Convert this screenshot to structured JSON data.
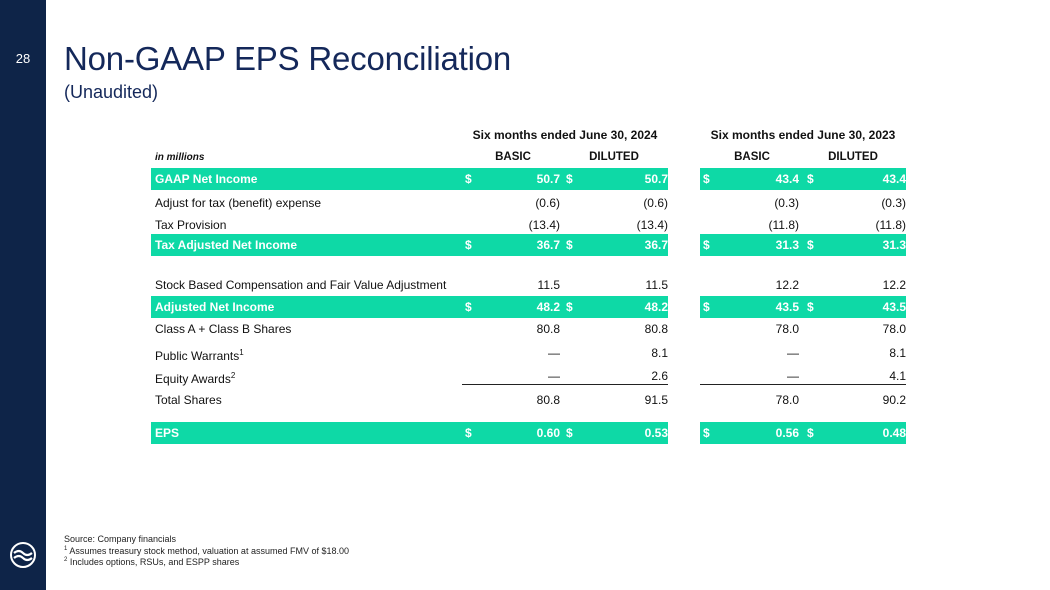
{
  "slide": {
    "page_number": "28",
    "title": "Non-GAAP EPS Reconciliation",
    "subtitle": "(Unaudited)"
  },
  "table": {
    "units_label": "in millions",
    "periods": [
      "Six months ended June 30, 2024",
      "Six months ended June 30, 2023"
    ],
    "columns": [
      "BASIC",
      "DILUTED",
      "BASIC",
      "DILUTED"
    ],
    "currency_symbol": "$",
    "rows": [
      {
        "label": "GAAP Net Income",
        "values": [
          "50.7",
          "50.7",
          "43.4",
          "43.4"
        ]
      },
      {
        "label": "Adjust for tax (benefit) expense",
        "values": [
          "(0.6)",
          "(0.6)",
          "(0.3)",
          "(0.3)"
        ]
      },
      {
        "label": "Tax Provision",
        "values": [
          "(13.4)",
          "(13.4)",
          "(11.8)",
          "(11.8)"
        ]
      },
      {
        "label": "Tax Adjusted Net Income",
        "values": [
          "36.7",
          "36.7",
          "31.3",
          "31.3"
        ]
      },
      {
        "label": "Stock Based Compensation and Fair Value Adjustment",
        "values": [
          "11.5",
          "11.5",
          "12.2",
          "12.2"
        ]
      },
      {
        "label": "Adjusted Net Income",
        "values": [
          "48.2",
          "48.2",
          "43.5",
          "43.5"
        ]
      },
      {
        "label": "Class A + Class B Shares",
        "values": [
          "80.8",
          "80.8",
          "78.0",
          "78.0"
        ]
      },
      {
        "label": "Public Warrants",
        "sup": "1",
        "values": [
          "—",
          "8.1",
          "—",
          "8.1"
        ]
      },
      {
        "label": "Equity Awards",
        "sup": "2",
        "values": [
          "—",
          "2.6",
          "—",
          "4.1"
        ]
      },
      {
        "label": "Total Shares",
        "values": [
          "80.8",
          "91.5",
          "78.0",
          "90.2"
        ]
      },
      {
        "label": "EPS",
        "values": [
          "0.60",
          "0.53",
          "0.56",
          "0.48"
        ]
      }
    ]
  },
  "footnotes": {
    "source": "Source: Company financials",
    "note1_mark": "1",
    "note1": "Assumes treasury stock method, valuation at assumed FMV of $18.00",
    "note2_mark": "2",
    "note2": "Includes options, RSUs, and ESPP shares"
  },
  "colors": {
    "navy": "#0e2448",
    "accent": "#0ed9a6",
    "title": "#14285a"
  }
}
